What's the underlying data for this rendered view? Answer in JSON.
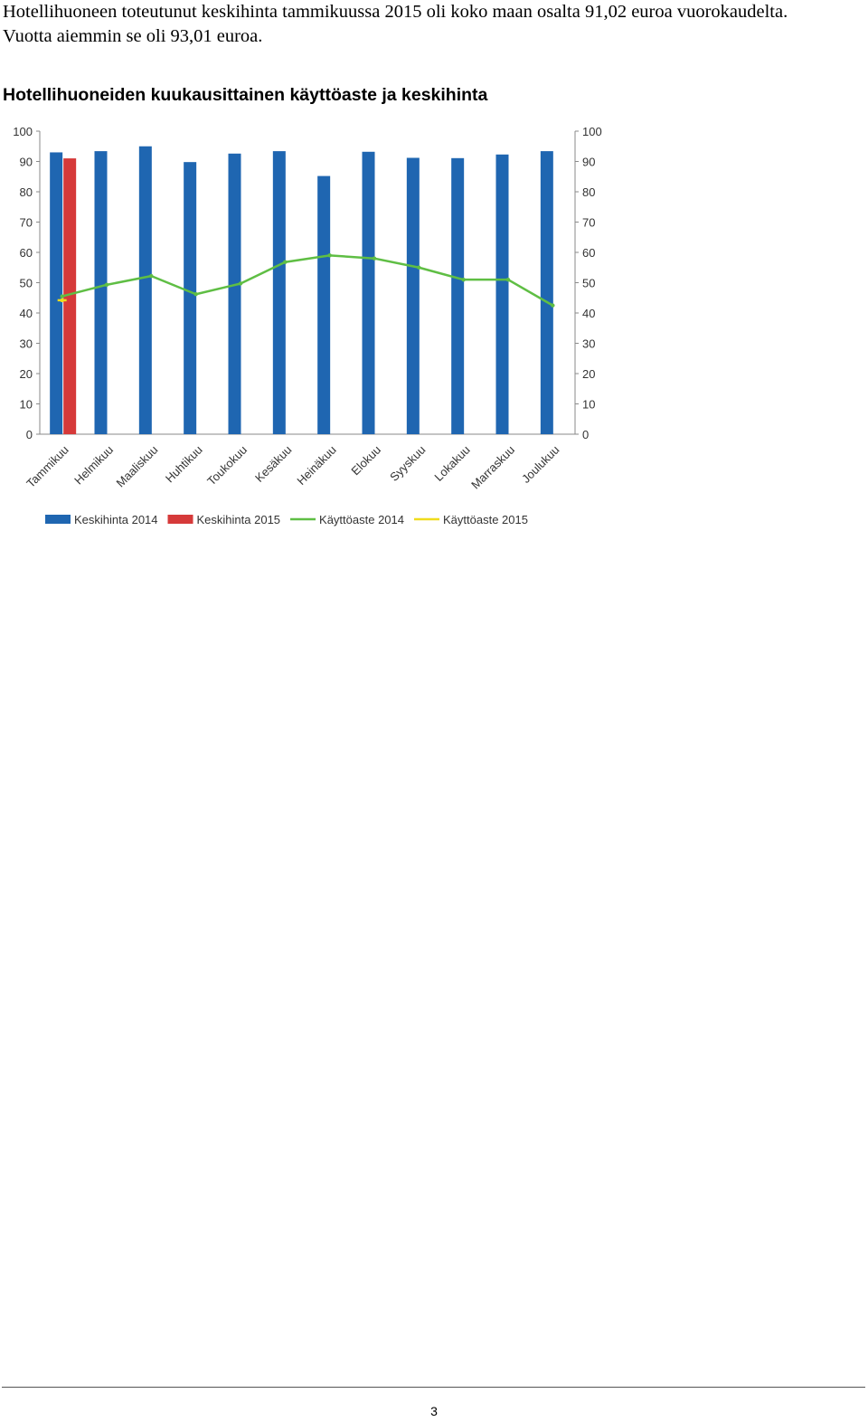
{
  "intro": {
    "line1": "Hotellihuoneen toteutunut keskihinta tammikuussa 2015 oli koko maan osalta 91,02 euroa vuorokaudelta.",
    "line2": "Vuotta aiemmin se oli 93,01 euroa."
  },
  "chart_title": "Hotellihuoneiden kuukausittainen käyttöaste ja keskihinta",
  "chart_data": {
    "type": "bar",
    "categories": [
      "Tammikuu",
      "Helmikuu",
      "Maaliskuu",
      "Huhtikuu",
      "Toukokuu",
      "Kesäkuu",
      "Heinäkuu",
      "Elokuu",
      "Syyskuu",
      "Lokakuu",
      "Marraskuu",
      "Joulukuu"
    ],
    "ylim": [
      0,
      100
    ],
    "y2lim": [
      0,
      100
    ],
    "yticks": [
      0,
      10,
      20,
      30,
      40,
      50,
      60,
      70,
      80,
      90,
      100
    ],
    "grid": false,
    "legend_position": "bottom",
    "series": [
      {
        "name": "Keskihinta 2014",
        "type": "bar",
        "color": "#1f66b1",
        "values": [
          93,
          93.4,
          95,
          89.8,
          92.6,
          93.4,
          85.2,
          93.2,
          91.2,
          91.1,
          92.3,
          93.4
        ]
      },
      {
        "name": "Keskihinta 2015",
        "type": "bar",
        "color": "#d63a3a",
        "values": [
          91.02,
          null,
          null,
          null,
          null,
          null,
          null,
          null,
          null,
          null,
          null,
          null
        ]
      },
      {
        "name": "Käyttöaste 2014",
        "type": "line",
        "color": "#5fbe44",
        "values": [
          45.5,
          49.3,
          52.2,
          46.2,
          49.7,
          56.8,
          59.0,
          58.0,
          55.0,
          51.0,
          51.0,
          42.5
        ]
      },
      {
        "name": "Käyttöaste 2015",
        "type": "line",
        "color": "#f0dc1c",
        "values": [
          44.2,
          null,
          null,
          null,
          null,
          null,
          null,
          null,
          null,
          null,
          null,
          null
        ]
      }
    ]
  },
  "footer": {
    "page_number": "3"
  }
}
